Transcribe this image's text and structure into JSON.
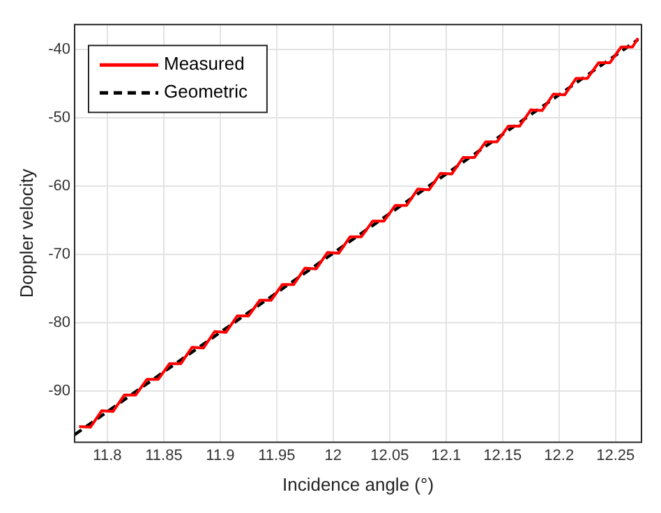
{
  "chart_data": {
    "type": "line",
    "xlabel": "Incidence angle (°)",
    "ylabel": "Doppler velocity",
    "xlim": [
      11.771,
      12.273
    ],
    "ylim": [
      -97.5,
      -36.3
    ],
    "xticks": [
      11.8,
      11.85,
      11.9,
      11.95,
      12,
      12.05,
      12.1,
      12.15,
      12.2,
      12.25
    ],
    "yticks": [
      -90,
      -80,
      -70,
      -60,
      -50,
      -40
    ],
    "grid": true,
    "legend": "top left",
    "marker": "none",
    "series": [
      {
        "name": "Measured",
        "color": "#ff0000",
        "line_style": "solid",
        "x": [
          11.775,
          11.785,
          11.795,
          11.805,
          11.815,
          11.825,
          11.835,
          11.845,
          11.855,
          11.865,
          11.875,
          11.885,
          11.895,
          11.905,
          11.915,
          11.925,
          11.935,
          11.945,
          11.955,
          11.965,
          11.975,
          11.985,
          11.995,
          12.005,
          12.015,
          12.025,
          12.035,
          12.045,
          12.055,
          12.065,
          12.075,
          12.085,
          12.095,
          12.105,
          12.115,
          12.125,
          12.135,
          12.145,
          12.155,
          12.165,
          12.175,
          12.185,
          12.195,
          12.205,
          12.215,
          12.225,
          12.235,
          12.245,
          12.255,
          12.265,
          12.27
        ],
        "values": [
          -95.2,
          -95.3,
          -92.9,
          -93.0,
          -90.6,
          -90.6,
          -88.3,
          -88.3,
          -86.0,
          -86.0,
          -83.6,
          -83.7,
          -81.3,
          -81.4,
          -79.0,
          -79.0,
          -76.7,
          -76.7,
          -74.4,
          -74.4,
          -72.0,
          -72.1,
          -69.7,
          -69.8,
          -67.4,
          -67.4,
          -65.1,
          -65.1,
          -62.8,
          -62.8,
          -60.4,
          -60.5,
          -58.1,
          -58.2,
          -55.8,
          -55.8,
          -53.5,
          -53.5,
          -51.2,
          -51.2,
          -48.8,
          -48.9,
          -46.5,
          -46.6,
          -44.2,
          -44.2,
          -41.9,
          -41.9,
          -39.6,
          -39.6,
          -38.3
        ]
      },
      {
        "name": "Geometric",
        "color": "#000000",
        "line_style": "dashed",
        "x": [
          11.771,
          11.85,
          11.9,
          11.95,
          12,
          12.05,
          12.1,
          12.15,
          12.2,
          12.27
        ],
        "values": [
          -96.4,
          -87.2,
          -81.4,
          -75.6,
          -69.8,
          -64.0,
          -58.2,
          -52.4,
          -46.6,
          -38.5
        ]
      }
    ]
  }
}
